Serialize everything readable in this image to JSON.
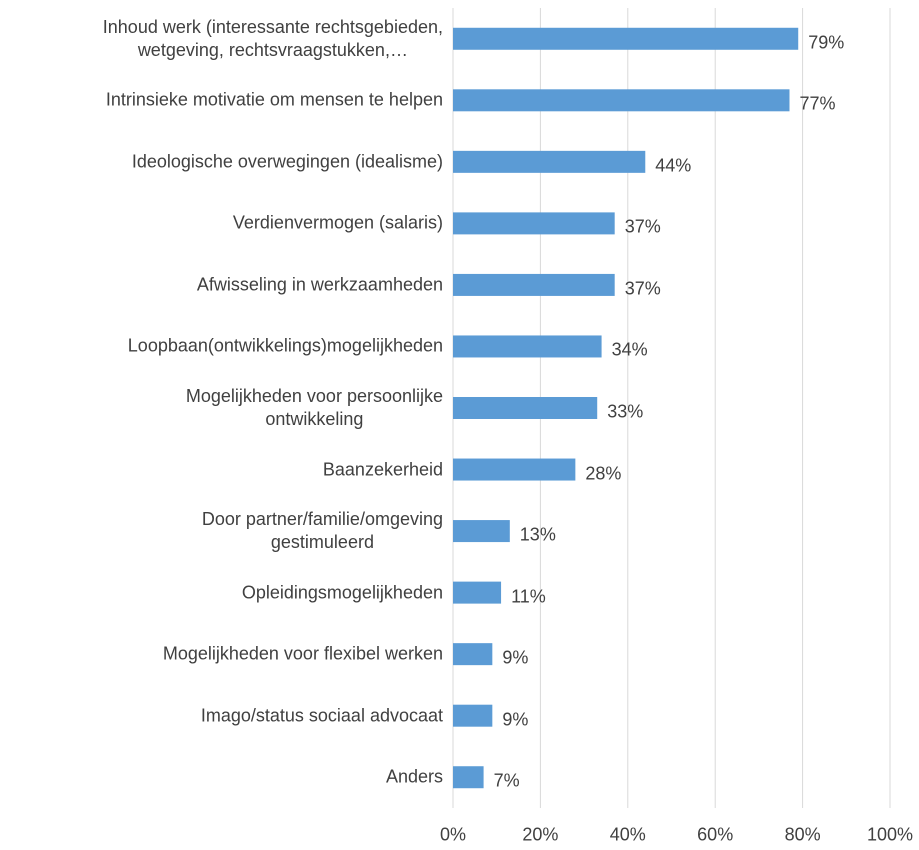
{
  "chart_data": {
    "type": "bar",
    "orientation": "horizontal",
    "categories": [
      "Inhoud werk (interessante rechtsgebieden,\nwetgeving, rechtsvraagstukken,…",
      "Intrinsieke motivatie om mensen te helpen",
      "Ideologische overwegingen (idealisme)",
      "Verdienvermogen (salaris)",
      "Afwisseling in werkzaamheden",
      "Loopbaan(ontwikkelings)mogelijkheden",
      "Mogelijkheden voor persoonlijke\nontwikkeling",
      "Baanzekerheid",
      "Door partner/familie/omgeving\ngestimuleerd",
      "Opleidingsmogelijkheden",
      "Mogelijkheden voor flexibel werken",
      "Imago/status sociaal advocaat",
      "Anders"
    ],
    "values": [
      79,
      77,
      44,
      37,
      37,
      34,
      33,
      28,
      13,
      11,
      9,
      9,
      7
    ],
    "value_labels": [
      "79%",
      "77%",
      "44%",
      "37%",
      "37%",
      "34%",
      "33%",
      "28%",
      "13%",
      "11%",
      "9%",
      "9%",
      "7%"
    ],
    "color": "#5b9bd5",
    "xlim": [
      0,
      100
    ],
    "xticks": [
      {
        "value": 0,
        "label": "0%"
      },
      {
        "value": 20,
        "label": "20%"
      },
      {
        "value": 40,
        "label": "40%"
      },
      {
        "value": 60,
        "label": "60%"
      },
      {
        "value": 80,
        "label": "80%"
      },
      {
        "value": 100,
        "label": "100%"
      }
    ],
    "grid": true
  }
}
